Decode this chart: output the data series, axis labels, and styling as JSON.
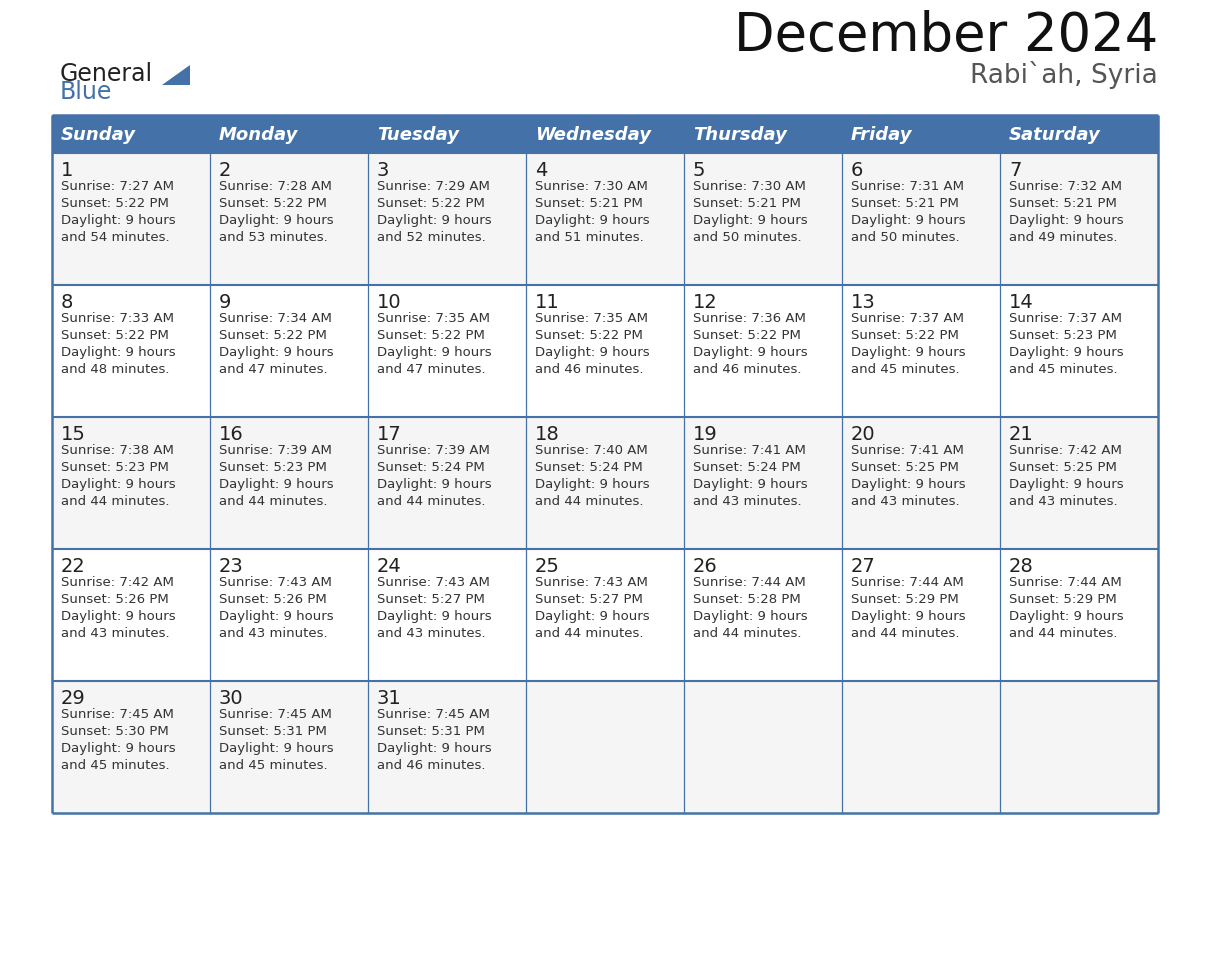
{
  "title": "December 2024",
  "subtitle": "Rabi`ah, Syria",
  "header_color": "#4472a8",
  "header_text_color": "#FFFFFF",
  "border_color": "#4472a8",
  "days_of_week": [
    "Sunday",
    "Monday",
    "Tuesday",
    "Wednesday",
    "Thursday",
    "Friday",
    "Saturday"
  ],
  "title_fontsize": 38,
  "subtitle_fontsize": 19,
  "header_fontsize": 13,
  "day_num_fontsize": 13,
  "cell_fontsize": 9.5,
  "logo_general_color": "#222222",
  "logo_blue_color": "#4472a8",
  "logo_triangle_color": "#4472a8",
  "cell_bg_even": "#F5F5F5",
  "cell_bg_odd": "#FFFFFF",
  "calendar_data": [
    [
      {
        "day": 1,
        "sunrise": "7:27 AM",
        "sunset": "5:22 PM",
        "daylight_h": "9 hours",
        "daylight_m": "and 54 minutes."
      },
      {
        "day": 2,
        "sunrise": "7:28 AM",
        "sunset": "5:22 PM",
        "daylight_h": "9 hours",
        "daylight_m": "and 53 minutes."
      },
      {
        "day": 3,
        "sunrise": "7:29 AM",
        "sunset": "5:22 PM",
        "daylight_h": "9 hours",
        "daylight_m": "and 52 minutes."
      },
      {
        "day": 4,
        "sunrise": "7:30 AM",
        "sunset": "5:21 PM",
        "daylight_h": "9 hours",
        "daylight_m": "and 51 minutes."
      },
      {
        "day": 5,
        "sunrise": "7:30 AM",
        "sunset": "5:21 PM",
        "daylight_h": "9 hours",
        "daylight_m": "and 50 minutes."
      },
      {
        "day": 6,
        "sunrise": "7:31 AM",
        "sunset": "5:21 PM",
        "daylight_h": "9 hours",
        "daylight_m": "and 50 minutes."
      },
      {
        "day": 7,
        "sunrise": "7:32 AM",
        "sunset": "5:21 PM",
        "daylight_h": "9 hours",
        "daylight_m": "and 49 minutes."
      }
    ],
    [
      {
        "day": 8,
        "sunrise": "7:33 AM",
        "sunset": "5:22 PM",
        "daylight_h": "9 hours",
        "daylight_m": "and 48 minutes."
      },
      {
        "day": 9,
        "sunrise": "7:34 AM",
        "sunset": "5:22 PM",
        "daylight_h": "9 hours",
        "daylight_m": "and 47 minutes."
      },
      {
        "day": 10,
        "sunrise": "7:35 AM",
        "sunset": "5:22 PM",
        "daylight_h": "9 hours",
        "daylight_m": "and 47 minutes."
      },
      {
        "day": 11,
        "sunrise": "7:35 AM",
        "sunset": "5:22 PM",
        "daylight_h": "9 hours",
        "daylight_m": "and 46 minutes."
      },
      {
        "day": 12,
        "sunrise": "7:36 AM",
        "sunset": "5:22 PM",
        "daylight_h": "9 hours",
        "daylight_m": "and 46 minutes."
      },
      {
        "day": 13,
        "sunrise": "7:37 AM",
        "sunset": "5:22 PM",
        "daylight_h": "9 hours",
        "daylight_m": "and 45 minutes."
      },
      {
        "day": 14,
        "sunrise": "7:37 AM",
        "sunset": "5:23 PM",
        "daylight_h": "9 hours",
        "daylight_m": "and 45 minutes."
      }
    ],
    [
      {
        "day": 15,
        "sunrise": "7:38 AM",
        "sunset": "5:23 PM",
        "daylight_h": "9 hours",
        "daylight_m": "and 44 minutes."
      },
      {
        "day": 16,
        "sunrise": "7:39 AM",
        "sunset": "5:23 PM",
        "daylight_h": "9 hours",
        "daylight_m": "and 44 minutes."
      },
      {
        "day": 17,
        "sunrise": "7:39 AM",
        "sunset": "5:24 PM",
        "daylight_h": "9 hours",
        "daylight_m": "and 44 minutes."
      },
      {
        "day": 18,
        "sunrise": "7:40 AM",
        "sunset": "5:24 PM",
        "daylight_h": "9 hours",
        "daylight_m": "and 44 minutes."
      },
      {
        "day": 19,
        "sunrise": "7:41 AM",
        "sunset": "5:24 PM",
        "daylight_h": "9 hours",
        "daylight_m": "and 43 minutes."
      },
      {
        "day": 20,
        "sunrise": "7:41 AM",
        "sunset": "5:25 PM",
        "daylight_h": "9 hours",
        "daylight_m": "and 43 minutes."
      },
      {
        "day": 21,
        "sunrise": "7:42 AM",
        "sunset": "5:25 PM",
        "daylight_h": "9 hours",
        "daylight_m": "and 43 minutes."
      }
    ],
    [
      {
        "day": 22,
        "sunrise": "7:42 AM",
        "sunset": "5:26 PM",
        "daylight_h": "9 hours",
        "daylight_m": "and 43 minutes."
      },
      {
        "day": 23,
        "sunrise": "7:43 AM",
        "sunset": "5:26 PM",
        "daylight_h": "9 hours",
        "daylight_m": "and 43 minutes."
      },
      {
        "day": 24,
        "sunrise": "7:43 AM",
        "sunset": "5:27 PM",
        "daylight_h": "9 hours",
        "daylight_m": "and 43 minutes."
      },
      {
        "day": 25,
        "sunrise": "7:43 AM",
        "sunset": "5:27 PM",
        "daylight_h": "9 hours",
        "daylight_m": "and 44 minutes."
      },
      {
        "day": 26,
        "sunrise": "7:44 AM",
        "sunset": "5:28 PM",
        "daylight_h": "9 hours",
        "daylight_m": "and 44 minutes."
      },
      {
        "day": 27,
        "sunrise": "7:44 AM",
        "sunset": "5:29 PM",
        "daylight_h": "9 hours",
        "daylight_m": "and 44 minutes."
      },
      {
        "day": 28,
        "sunrise": "7:44 AM",
        "sunset": "5:29 PM",
        "daylight_h": "9 hours",
        "daylight_m": "and 44 minutes."
      }
    ],
    [
      {
        "day": 29,
        "sunrise": "7:45 AM",
        "sunset": "5:30 PM",
        "daylight_h": "9 hours",
        "daylight_m": "and 45 minutes."
      },
      {
        "day": 30,
        "sunrise": "7:45 AM",
        "sunset": "5:31 PM",
        "daylight_h": "9 hours",
        "daylight_m": "and 45 minutes."
      },
      {
        "day": 31,
        "sunrise": "7:45 AM",
        "sunset": "5:31 PM",
        "daylight_h": "9 hours",
        "daylight_m": "and 46 minutes."
      },
      null,
      null,
      null,
      null
    ]
  ]
}
